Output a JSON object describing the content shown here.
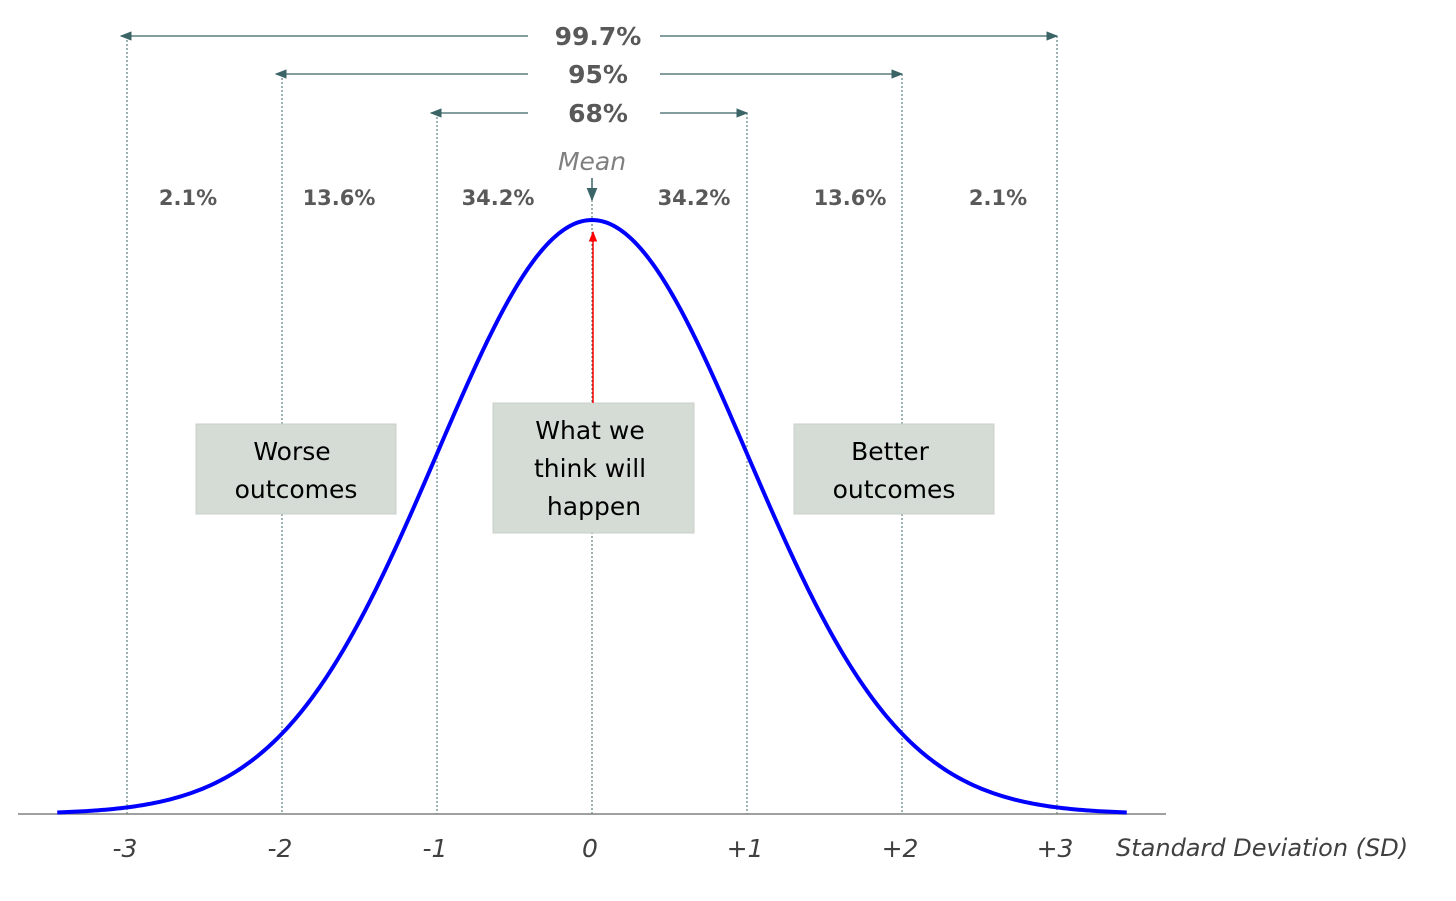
{
  "chart_data": {
    "type": "line",
    "curve": "normal-distribution",
    "x_ticks": [
      "-3",
      "-2",
      "-1",
      "0",
      "+1",
      "+2",
      "+3"
    ],
    "xlabel": "Standard Deviation (SD)",
    "mean_label": "Mean",
    "ranges": [
      {
        "label": "99.7%",
        "from": -3,
        "to": 3
      },
      {
        "label": "95%",
        "from": -2,
        "to": 2
      },
      {
        "label": "68%",
        "from": -1,
        "to": 1
      }
    ],
    "bands": [
      {
        "label": "2.1%",
        "center": -2.5
      },
      {
        "label": "13.6%",
        "center": -1.5
      },
      {
        "label": "34.2%",
        "center": -0.5
      },
      {
        "label": "34.2%",
        "center": 0.5
      },
      {
        "label": "13.6%",
        "center": 1.5
      },
      {
        "label": "2.1%",
        "center": 2.5
      }
    ],
    "annotations": [
      {
        "lines": [
          "Worse",
          "outcomes"
        ],
        "position": "left"
      },
      {
        "lines": [
          "What we",
          "think will",
          "happen"
        ],
        "position": "center"
      },
      {
        "lines": [
          "Better",
          "outcomes"
        ],
        "position": "right"
      }
    ],
    "colors": {
      "curve": "#0000ff",
      "guides": "#3b6466",
      "mean_arrow": "#ff0000",
      "box_fill": "#d5dcd6",
      "text_bold": "#595959"
    },
    "xlim": [
      -3.45,
      3.45
    ]
  }
}
